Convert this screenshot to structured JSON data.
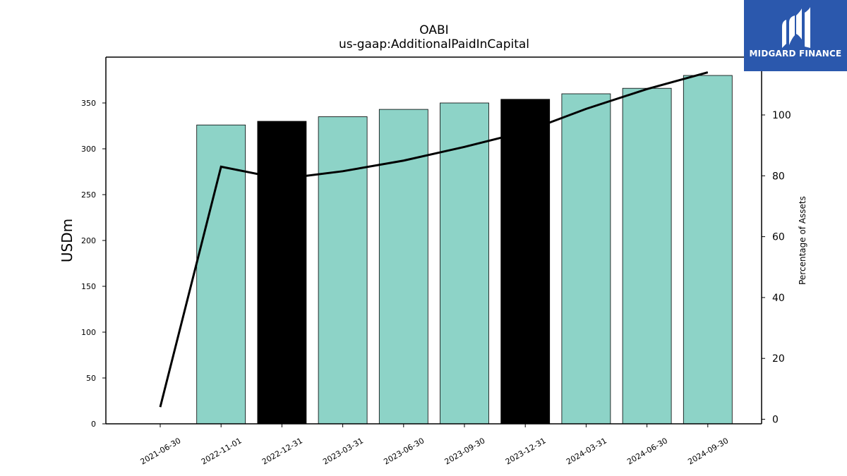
{
  "brand": {
    "name": "MIDGARD FINANCE",
    "logo_icon": "midgard-logo-icon",
    "background": "#2b58ad"
  },
  "chart_data": {
    "type": "bar",
    "title": "OABI",
    "subtitle": "us-gaap:AdditionalPaidInCapital",
    "ylabel": "USDm",
    "y2label": "Percentage of Assets",
    "categories": [
      "2021-06-30",
      "2022-11-01",
      "2022-12-31",
      "2023-03-31",
      "2023-06-30",
      "2023-09-30",
      "2023-12-31",
      "2024-03-31",
      "2024-06-30",
      "2024-09-30"
    ],
    "series": [
      {
        "type": "bar",
        "values": [
          0,
          326,
          330,
          335,
          343,
          350,
          354,
          360,
          366,
          380
        ],
        "colors": [
          "#8dd3c7",
          "#8dd3c7",
          "#000000",
          "#8dd3c7",
          "#8dd3c7",
          "#8dd3c7",
          "#000000",
          "#8dd3c7",
          "#8dd3c7",
          "#8dd3c7"
        ]
      },
      {
        "type": "line",
        "axis": "right",
        "color": "#000000",
        "values": [
          4,
          83,
          79,
          81.5,
          85,
          89.5,
          94.5,
          102,
          108.5,
          114
        ]
      }
    ],
    "ylim": [
      0,
      400
    ],
    "yticks": [
      0,
      50,
      100,
      150,
      200,
      250,
      300,
      350
    ],
    "y2lim": [
      -1.5,
      119
    ],
    "y2ticks": [
      0,
      20,
      40,
      60,
      80,
      100
    ],
    "grid": false,
    "legend": "none"
  }
}
